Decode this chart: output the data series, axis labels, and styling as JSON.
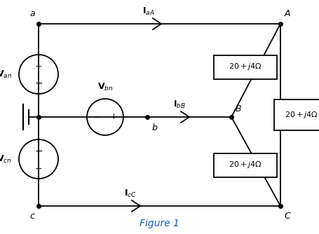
{
  "fig_width": 4.55,
  "fig_height": 3.34,
  "dpi": 100,
  "bg_color": "#ffffff",
  "line_color": "black",
  "line_width": 1.3,
  "figure_label": "Figure 1",
  "figure_label_color": "#1a5fb4",
  "figure_label_fontsize": 10
}
